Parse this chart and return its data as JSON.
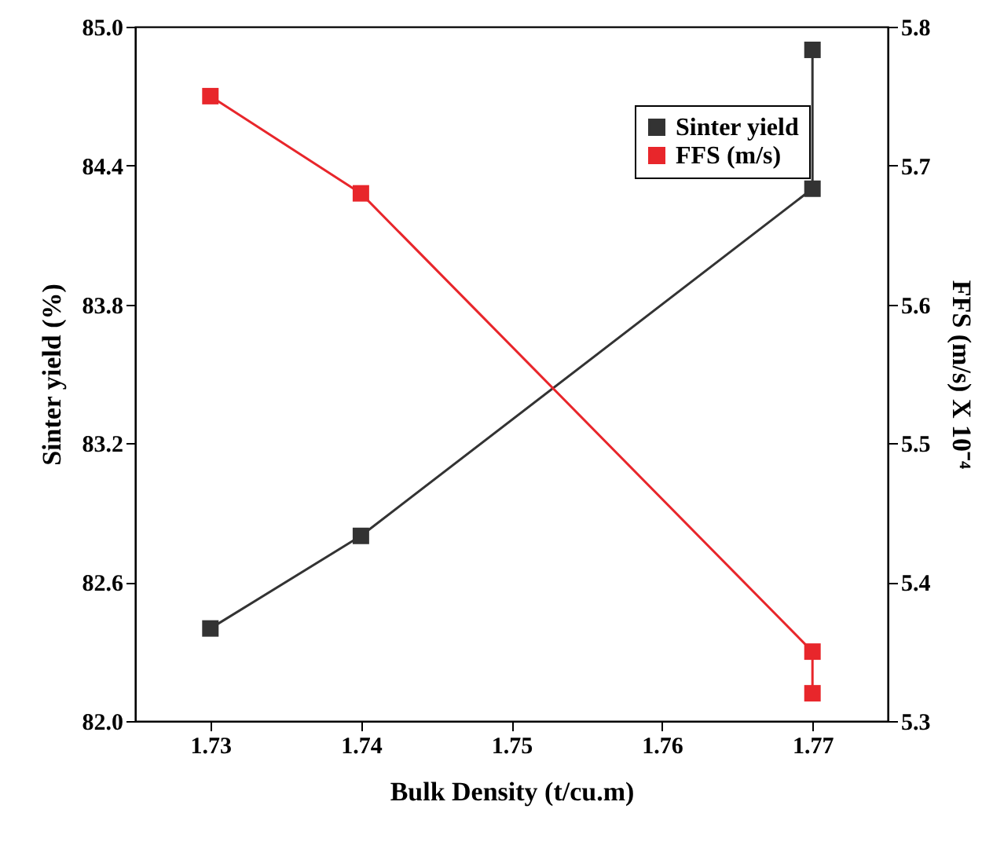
{
  "chart_data": {
    "type": "line",
    "xlabel": "Bulk Density (t/cu.m)",
    "ylabel": "Sinter yield (%)",
    "y2label": "FFS (m/s) X 10⁻⁴",
    "xlim": [
      1.725,
      1.775
    ],
    "xticks": [
      1.73,
      1.74,
      1.75,
      1.76,
      1.77
    ],
    "ylim": [
      82.0,
      85.0
    ],
    "yticks": [
      {
        "value": 82.0,
        "label": "82.0"
      },
      82.6,
      83.2,
      83.8,
      84.4,
      {
        "value": 85.0,
        "label": "85.0"
      }
    ],
    "y2lim": [
      5.3,
      5.8
    ],
    "y2ticks": [
      5.3,
      5.4,
      5.5,
      5.6,
      5.7,
      5.8
    ],
    "marker": "square",
    "legend": "top right",
    "grid": false,
    "line_style": "solid",
    "series": [
      {
        "name": "Sinter yield",
        "color": "#333333",
        "x": [
          1.73,
          1.74,
          1.77,
          1.77
        ],
        "values": [
          82.4,
          82.8,
          84.3,
          84.9
        ]
      },
      {
        "name": "FFS (m/s)",
        "color": "#e8262b",
        "axis": "y2",
        "x": [
          1.73,
          1.74,
          1.77,
          1.77
        ],
        "values": [
          5.75,
          5.68,
          5.35,
          5.32
        ]
      }
    ]
  }
}
